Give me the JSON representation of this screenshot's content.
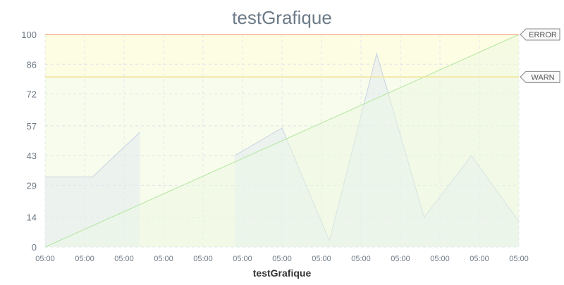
{
  "chart_data": {
    "type": "line",
    "title": "testGrafique",
    "xlabel": "testGrafique",
    "ylabel": "",
    "ylim": [
      0,
      100
    ],
    "y_ticks": [
      "0",
      "14",
      "29",
      "43",
      "57",
      "72",
      "86",
      "100"
    ],
    "x_ticks": [
      "05:00",
      "05:00",
      "05:00",
      "05:00",
      "05:00",
      "05:00",
      "05:00",
      "05:00",
      "05:00",
      "05:00",
      "05:00",
      "05:00",
      "05:00"
    ],
    "grid": true,
    "series": [
      {
        "color": "#c9d3e2",
        "fill": "#e4e9f1",
        "segments": [
          [
            [
              0,
              33
            ],
            [
              1.2,
              33
            ],
            [
              2.4,
              54
            ]
          ],
          [
            [
              4.8,
              43
            ],
            [
              6.0,
              56
            ],
            [
              7.2,
              3
            ],
            [
              8.4,
              91
            ],
            [
              9.6,
              14
            ],
            [
              10.8,
              43
            ],
            [
              12,
              12
            ]
          ]
        ]
      },
      {
        "color": "#b4e6a0",
        "fill": "#eaf8e2",
        "segments": [
          [
            [
              0,
              0
            ],
            [
              12,
              100
            ]
          ]
        ]
      }
    ],
    "thresholds": [
      {
        "label": "ERROR",
        "value": 100,
        "line_color": "#f4c9a9",
        "fill": "#fdfde4"
      },
      {
        "label": "WARN",
        "value": 80,
        "line_color": "#f1e6a0",
        "fill": "#f6fbe9"
      }
    ]
  }
}
